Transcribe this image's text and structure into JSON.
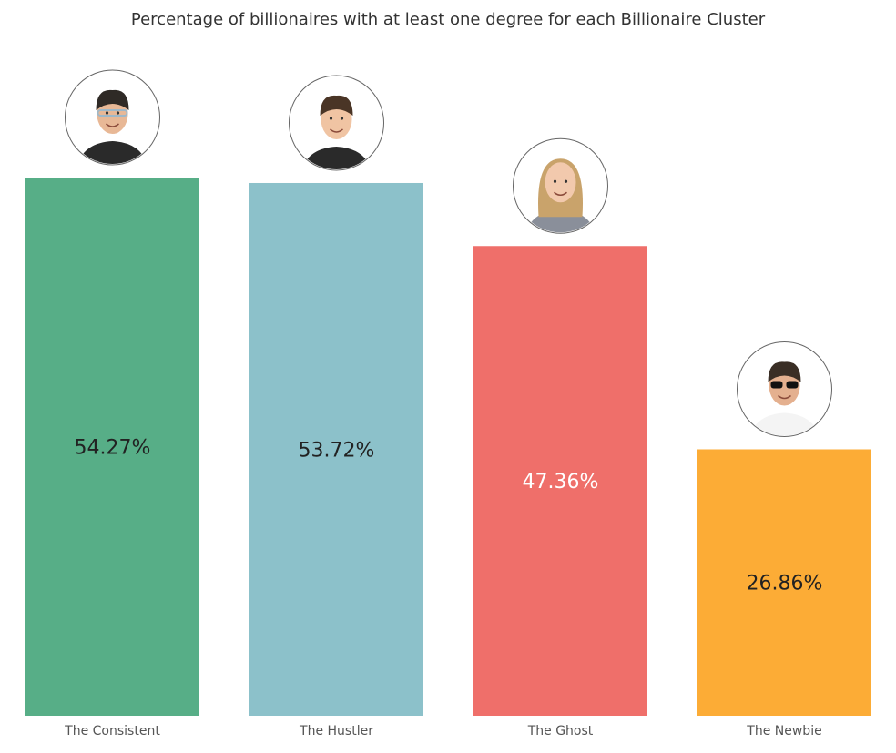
{
  "chart_data": {
    "type": "bar",
    "title": "Percentage of billionaires with at least one degree for each Billionaire Cluster",
    "categories": [
      "The Consistent",
      "The Hustler",
      "The Ghost",
      "The Newbie"
    ],
    "values": [
      54.27,
      53.72,
      47.36,
      26.86
    ],
    "value_labels": [
      "54.27%",
      "53.72%",
      "47.36%",
      "26.86%"
    ],
    "colors": [
      "#57ae87",
      "#8cc1ca",
      "#ef6f6a",
      "#fcac36"
    ],
    "value_label_colors": [
      "#222222",
      "#222222",
      "#ffffff",
      "#222222"
    ],
    "avatar_icons": [
      "person-glasses-icon",
      "person-smiling-icon",
      "person-blonde-woman-icon",
      "person-sunglasses-icon"
    ],
    "xlabel": "",
    "ylabel": "",
    "ylim": [
      0,
      54.27
    ],
    "grid": false,
    "legend": "none"
  }
}
